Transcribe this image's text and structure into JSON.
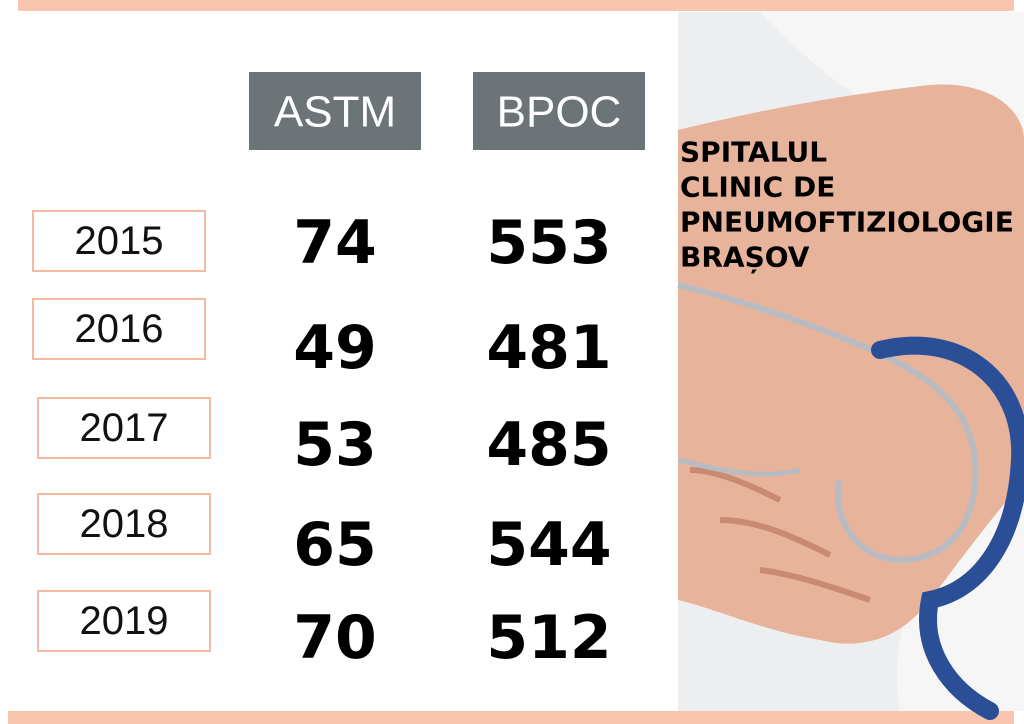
{
  "table": {
    "columns": [
      "ASTM",
      "BPOC"
    ],
    "rows": [
      [
        "2015",
        "74",
        "553"
      ],
      [
        "2016",
        "49",
        "481"
      ],
      [
        "2017",
        "53",
        "485"
      ],
      [
        "2018",
        "65",
        "544"
      ],
      [
        "2019",
        "70",
        "512"
      ]
    ]
  },
  "hospital": {
    "lines": [
      "SPITALUL",
      "CLINIC DE",
      "PNEUMOFTIZIOLOGIE",
      "BRAȘOV"
    ]
  }
}
